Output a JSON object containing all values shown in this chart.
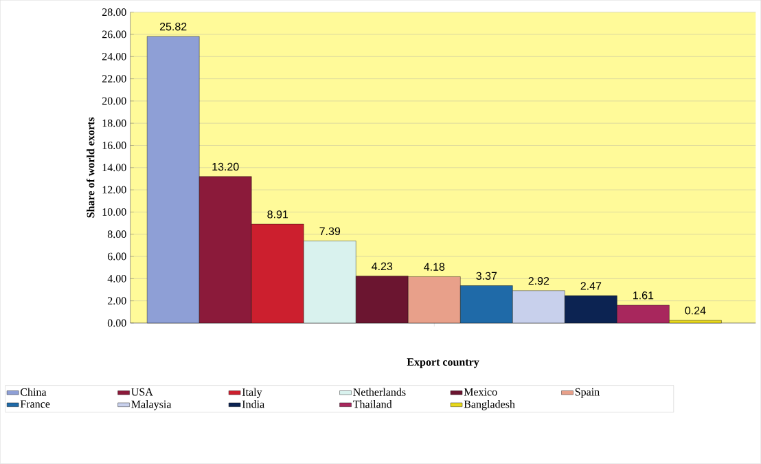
{
  "chart_data": {
    "type": "bar",
    "xlabel": "Export country",
    "ylabel": "Share of world exorts",
    "categories": [
      null
    ],
    "series": [
      {
        "name": "China",
        "color": "#8e9fd6",
        "values": [
          25.82
        ],
        "value_labels": [
          "25.82"
        ]
      },
      {
        "name": "USA",
        "color": "#8b1a3a",
        "values": [
          13.2
        ],
        "value_labels": [
          "13.20"
        ]
      },
      {
        "name": "Italy",
        "color": "#cc1f2e",
        "values": [
          8.91
        ],
        "value_labels": [
          "8.91"
        ]
      },
      {
        "name": "Netherlands",
        "color": "#d9f2ee",
        "values": [
          7.39
        ],
        "value_labels": [
          "7.39"
        ]
      },
      {
        "name": "Mexico",
        "color": "#6b1530",
        "values": [
          4.23
        ],
        "value_labels": [
          "4.23"
        ]
      },
      {
        "name": "Spain",
        "color": "#e8a08a",
        "values": [
          4.18
        ],
        "value_labels": [
          "4.18"
        ]
      },
      {
        "name": "France",
        "color": "#1f6aa8",
        "values": [
          3.37
        ],
        "value_labels": [
          "3.37"
        ]
      },
      {
        "name": "Malaysia",
        "color": "#c8d0ec",
        "values": [
          2.92
        ],
        "value_labels": [
          "2.92"
        ]
      },
      {
        "name": "India",
        "color": "#0c2352",
        "values": [
          2.47
        ],
        "value_labels": [
          "2.47"
        ]
      },
      {
        "name": "Thailand",
        "color": "#a8275d",
        "values": [
          1.61
        ],
        "value_labels": [
          "1.61"
        ]
      },
      {
        "name": "Bangladesh",
        "color": "#e8d81c",
        "values": [
          0.24
        ],
        "value_labels": [
          "0.24"
        ]
      }
    ],
    "ylim": [
      0,
      28
    ],
    "yticks": [
      {
        "value": 0,
        "label": "0.00"
      },
      {
        "value": 2,
        "label": "2.00"
      },
      {
        "value": 4,
        "label": "4.00"
      },
      {
        "value": 6,
        "label": "6.00"
      },
      {
        "value": 8,
        "label": "8.00"
      },
      {
        "value": 10,
        "label": "10.00"
      },
      {
        "value": 12,
        "label": "12.00"
      },
      {
        "value": 14,
        "label": "14.00"
      },
      {
        "value": 16,
        "label": "16.00"
      },
      {
        "value": 18,
        "label": "18.00"
      },
      {
        "value": 20,
        "label": "20.00"
      },
      {
        "value": 22,
        "label": "22.00"
      },
      {
        "value": 24,
        "label": "24.00"
      },
      {
        "value": 26,
        "label": "26.00"
      },
      {
        "value": 28,
        "label": "28.00"
      }
    ],
    "grid": "y",
    "legend": "bottom",
    "tick_labels": "y"
  }
}
